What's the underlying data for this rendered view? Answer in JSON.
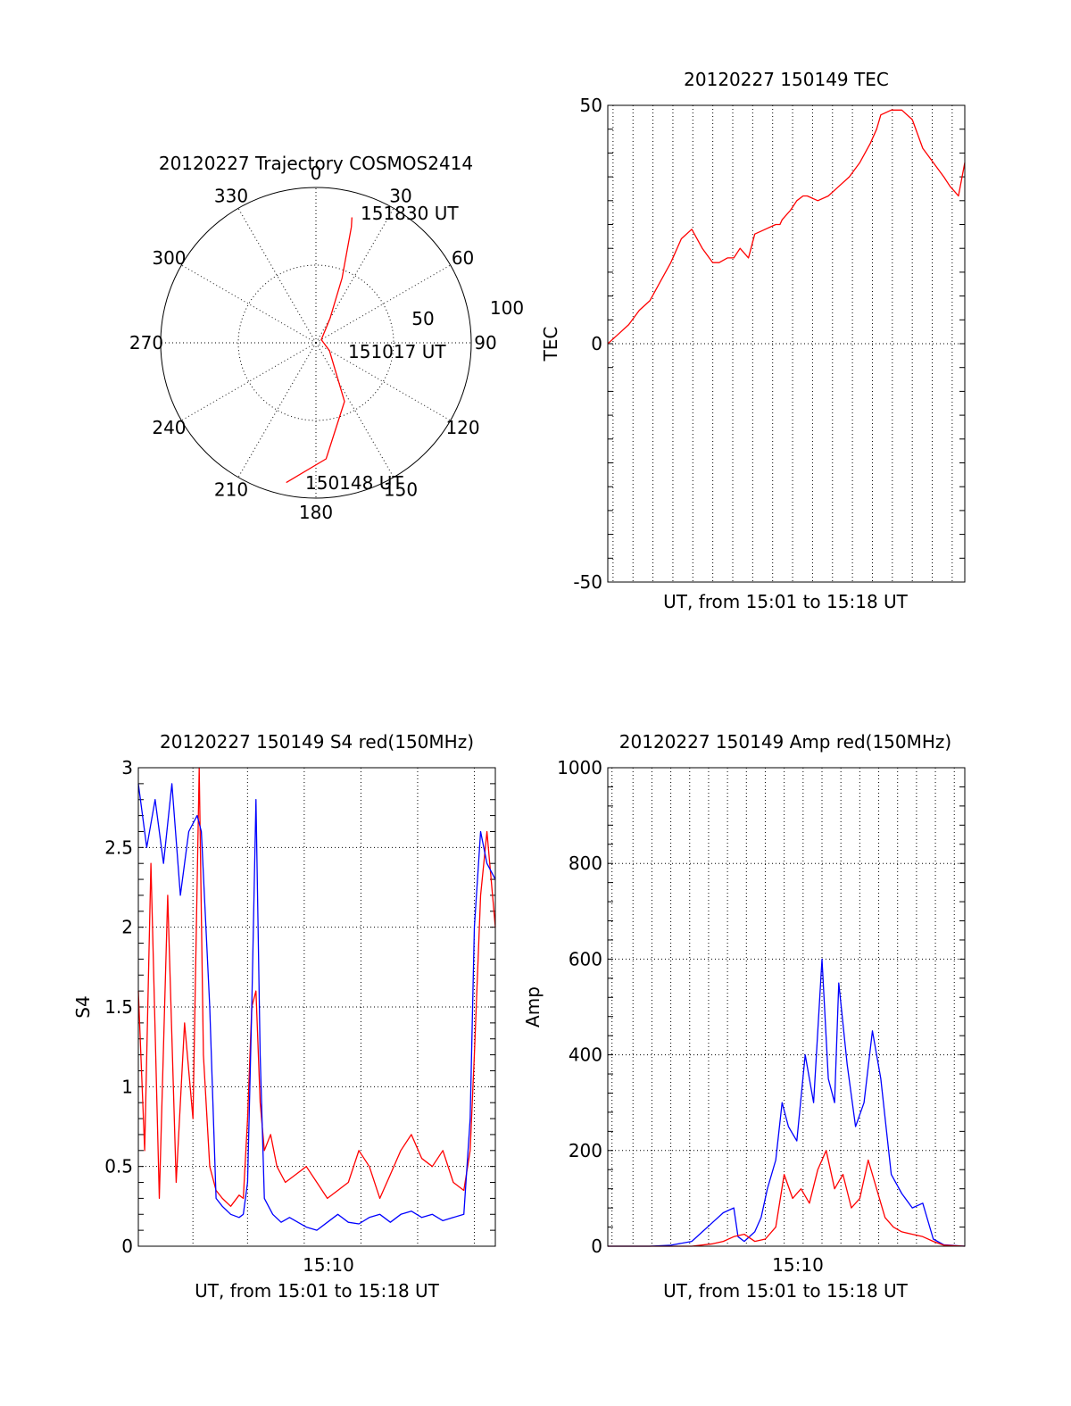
{
  "colors": {
    "red": "#ff0000",
    "blue": "#0000ff",
    "axis": "#000000"
  },
  "chart_data": [
    {
      "type": "polar",
      "title": "20120227 Trajectory COSMOS2414",
      "azimuth_labels": [
        "0",
        "30",
        "60",
        "90",
        "120",
        "150",
        "180",
        "210",
        "240",
        "270",
        "300",
        "330"
      ],
      "ring_labels": [
        "50",
        "100"
      ],
      "rmax": 100,
      "series": [
        {
          "color": "red",
          "points": [
            [
              192,
              92
            ],
            [
              175,
              75
            ],
            [
              154,
              42
            ],
            [
              120,
              10
            ],
            [
              60,
              4
            ],
            [
              30,
              18
            ],
            [
              22,
              45
            ],
            [
              17,
              78
            ],
            [
              16,
              84
            ]
          ]
        }
      ],
      "annotations": [
        {
          "text": "151830 UT",
          "az": 16,
          "r": 84
        },
        {
          "text": "151017 UT",
          "az": 60,
          "r": 3
        },
        {
          "text": "150148 UT",
          "az": 192,
          "r": 92
        }
      ]
    },
    {
      "type": "line",
      "title": "20120227 150149 TEC",
      "xlabel": "UT, from 15:01 to 15:18 UT",
      "ylabel": "TEC",
      "x_range": [
        "15:01",
        "15:18"
      ],
      "ylim": [
        -50,
        50
      ],
      "yticks": [
        "-50",
        "0",
        "50"
      ],
      "xgrid_minutes": [
        15.0167,
        15.9833,
        16.95,
        17.9167,
        18.8833,
        19.85,
        20.8167,
        21.7833,
        22.75,
        23.7167,
        24.6833,
        25.65,
        26.6167,
        27.5833,
        28.55,
        29.5167,
        30.4833
      ],
      "series": [
        {
          "color": "red",
          "x_minutes": [
            1.0,
            1.5,
            2.0,
            2.5,
            3.0,
            3.5,
            4.0,
            4.5,
            5.0,
            5.5,
            6.0,
            6.3,
            6.7,
            7.0,
            7.3,
            7.7,
            8.0,
            8.5,
            9.0,
            9.2,
            9.3,
            9.7,
            10.0,
            10.3,
            10.5,
            11.0,
            11.5,
            12.0,
            12.5,
            13.0,
            13.5,
            13.8,
            14.0,
            14.5,
            15.0,
            15.5,
            16.0,
            16.5,
            17.0,
            17.3,
            17.5,
            17.7,
            18.0
          ],
          "y": [
            0,
            2,
            4,
            7,
            9,
            13,
            17,
            22,
            24,
            20,
            17,
            17,
            18,
            18,
            20,
            18,
            23,
            24,
            25,
            25,
            26,
            28,
            30,
            31,
            31,
            30,
            31,
            33,
            35,
            38,
            42,
            45,
            48,
            49,
            49,
            47,
            41,
            38,
            35,
            33,
            32,
            31,
            38
          ]
        }
      ]
    },
    {
      "type": "line",
      "title": "20120227 150149 S4 red(150MHz)",
      "xlabel": "UT, from 15:01 to 15:18 UT",
      "ylabel": "S4",
      "x_range": [
        "15:01",
        "15:18"
      ],
      "xticks": [
        "15:10"
      ],
      "ylim": [
        0,
        3
      ],
      "yticks": [
        "0",
        "0.5",
        "1",
        "1.5",
        "2",
        "2.5",
        "3"
      ],
      "series": [
        {
          "name": "red",
          "color": "red",
          "x_minutes": [
            1.0,
            1.3,
            1.6,
            2.0,
            2.4,
            2.8,
            3.2,
            3.6,
            3.9,
            4.1,
            4.4,
            4.7,
            5.0,
            5.4,
            5.8,
            6.0,
            6.2,
            6.4,
            6.6,
            6.8,
            7.0,
            7.3,
            7.6,
            8.0,
            8.5,
            9.0,
            9.5,
            10.0,
            10.5,
            11.0,
            11.5,
            12.0,
            12.5,
            13.0,
            13.5,
            14.0,
            14.5,
            15.0,
            15.5,
            16.0,
            16.5,
            16.8,
            17.0,
            17.3,
            17.6,
            18.0
          ],
          "y": [
            1.6,
            0.6,
            2.4,
            0.3,
            2.2,
            0.4,
            1.4,
            0.8,
            3.0,
            1.2,
            0.5,
            0.35,
            0.3,
            0.25,
            0.32,
            0.3,
            0.8,
            1.5,
            1.6,
            0.9,
            0.6,
            0.7,
            0.5,
            0.4,
            0.45,
            0.5,
            0.4,
            0.3,
            0.35,
            0.4,
            0.6,
            0.5,
            0.3,
            0.45,
            0.6,
            0.7,
            0.55,
            0.5,
            0.6,
            0.4,
            0.35,
            0.6,
            1.2,
            2.2,
            2.6,
            2.0
          ]
        },
        {
          "name": "blue",
          "color": "blue",
          "x_minutes": [
            1.0,
            1.4,
            1.8,
            2.2,
            2.6,
            3.0,
            3.4,
            3.8,
            4.0,
            4.4,
            4.7,
            5.0,
            5.4,
            5.8,
            6.0,
            6.2,
            6.4,
            6.6,
            6.8,
            7.0,
            7.4,
            7.8,
            8.2,
            8.6,
            9.0,
            9.5,
            10.0,
            10.5,
            11.0,
            11.5,
            12.0,
            12.5,
            13.0,
            13.5,
            14.0,
            14.5,
            15.0,
            15.5,
            16.0,
            16.5,
            16.8,
            17.0,
            17.3,
            17.6,
            18.0
          ],
          "y": [
            2.9,
            2.5,
            2.8,
            2.4,
            2.9,
            2.2,
            2.6,
            2.7,
            2.6,
            1.5,
            0.3,
            0.25,
            0.2,
            0.18,
            0.2,
            0.4,
            1.5,
            2.8,
            1.2,
            0.3,
            0.2,
            0.15,
            0.18,
            0.15,
            0.12,
            0.1,
            0.15,
            0.2,
            0.15,
            0.14,
            0.18,
            0.2,
            0.15,
            0.2,
            0.22,
            0.18,
            0.2,
            0.16,
            0.18,
            0.2,
            0.8,
            2.0,
            2.6,
            2.4,
            2.3
          ]
        }
      ]
    },
    {
      "type": "line",
      "title": "20120227 150149 Amp red(150MHz)",
      "xlabel": "UT, from 15:01 to 15:18 UT",
      "ylabel": "Amp",
      "x_range": [
        "15:01",
        "15:18"
      ],
      "xticks": [
        "15:10"
      ],
      "ylim": [
        0,
        1000
      ],
      "yticks": [
        "0",
        "200",
        "400",
        "600",
        "800",
        "1000"
      ],
      "series": [
        {
          "name": "blue",
          "color": "blue",
          "x_minutes": [
            1.0,
            3.0,
            4.0,
            5.0,
            5.5,
            6.0,
            6.5,
            7.0,
            7.2,
            7.5,
            8.0,
            8.3,
            8.6,
            9.0,
            9.3,
            9.6,
            10.0,
            10.4,
            10.8,
            11.2,
            11.5,
            11.8,
            12.0,
            12.4,
            12.8,
            13.2,
            13.6,
            14.0,
            14.5,
            15.0,
            15.5,
            16.0,
            16.5,
            17.0,
            18.0
          ],
          "y": [
            0,
            0,
            2,
            10,
            30,
            50,
            70,
            80,
            20,
            10,
            30,
            60,
            120,
            180,
            300,
            250,
            220,
            400,
            300,
            600,
            350,
            300,
            550,
            380,
            250,
            300,
            450,
            350,
            150,
            110,
            80,
            90,
            15,
            3,
            0
          ]
        },
        {
          "name": "red",
          "color": "red",
          "x_minutes": [
            1.0,
            5.0,
            6.0,
            6.5,
            7.0,
            7.5,
            8.0,
            8.5,
            9.0,
            9.4,
            9.8,
            10.2,
            10.6,
            11.0,
            11.4,
            11.8,
            12.2,
            12.6,
            13.0,
            13.4,
            13.8,
            14.2,
            14.6,
            15.0,
            15.5,
            16.0,
            16.5,
            17.0,
            18.0
          ],
          "y": [
            0,
            0,
            5,
            10,
            20,
            25,
            10,
            15,
            40,
            150,
            100,
            120,
            90,
            160,
            200,
            120,
            150,
            80,
            100,
            180,
            120,
            60,
            40,
            30,
            25,
            20,
            10,
            2,
            0
          ]
        }
      ]
    }
  ]
}
